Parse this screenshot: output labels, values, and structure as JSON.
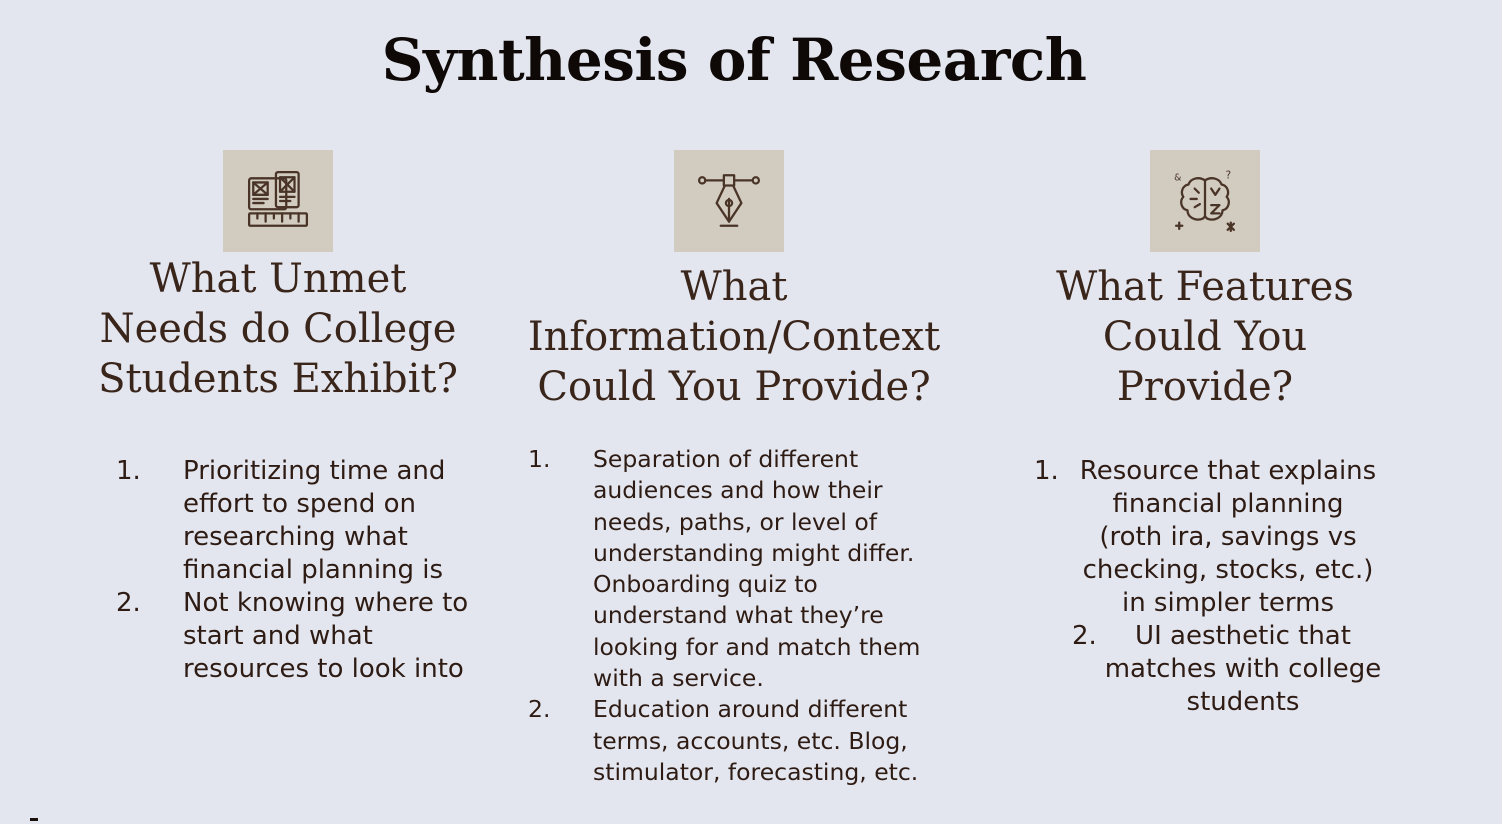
{
  "title": "Synthesis of Research",
  "colors": {
    "background": "#e3e6ef",
    "icon_box": "#d2cbbf",
    "text": "#2e1c14",
    "title": "#0e0907",
    "icon_stroke": "#4a3428"
  },
  "columns": [
    {
      "icon": "wireframe-design-icon",
      "heading": "What Unmet Needs do College Students Exhibit?",
      "items": [
        {
          "number": "1.",
          "text": "Prioritizing time and effort to spend on researching what financial planning is"
        },
        {
          "number": "2.",
          "text": "Not knowing where to start and what resources to look into"
        }
      ]
    },
    {
      "icon": "pen-tool-icon",
      "heading": "What Information/Context Could You Provide?",
      "items": [
        {
          "number": "1.",
          "text": "Separation of different audiences and how their needs, paths, or level of understanding  might differ. Onboarding quiz to understand what they’re looking for and match them with a service."
        },
        {
          "number": "2.",
          "text": "Education around different terms, accounts, etc. Blog, stimulator, forecasting, etc."
        }
      ]
    },
    {
      "icon": "brain-icon",
      "heading": "What Features Could You Provide?",
      "items": [
        {
          "number": "1.",
          "text": "Resource that explains financial planning (roth ira, savings vs checking, stocks, etc.) in simpler terms"
        },
        {
          "number": "2.",
          "text": "UI aesthetic that matches with college students"
        }
      ]
    }
  ]
}
